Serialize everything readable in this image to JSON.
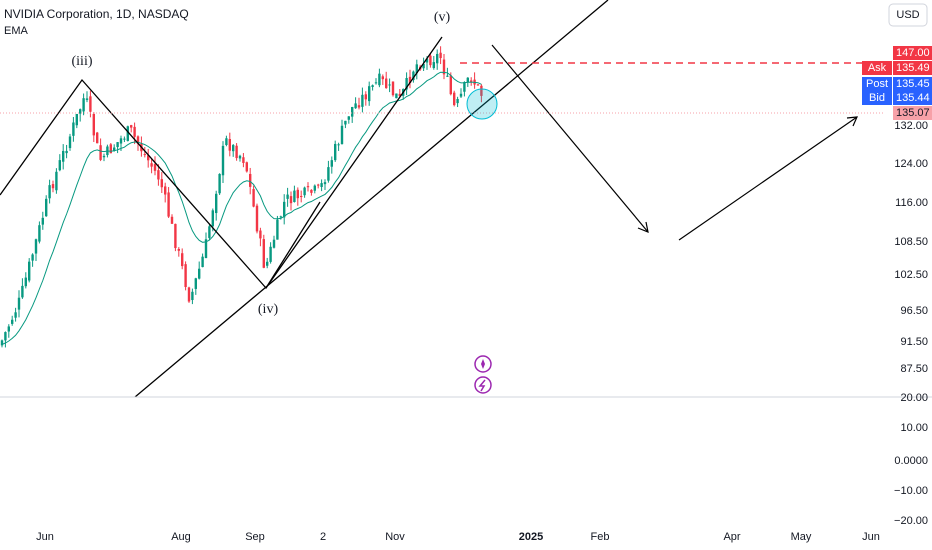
{
  "header": {
    "title": "NVIDIA Corporation, 1D, NASDAQ",
    "indicator": "EMA",
    "currency": "USD"
  },
  "price_axis": {
    "ticks": [
      "132.00",
      "124.00",
      "116.00",
      "108.50",
      "102.50",
      "96.50",
      "91.50",
      "87.50"
    ]
  },
  "indicator_axis": {
    "ticks": [
      "20.00",
      "10.00",
      "0.0000",
      "−10.00",
      "−20.00"
    ]
  },
  "time_axis": {
    "labels": [
      "Jun",
      "Aug",
      "Sep",
      "2",
      "Nov",
      "2025",
      "Feb",
      "Apr",
      "May",
      "Jun"
    ]
  },
  "price_tags": [
    {
      "value": "147.00"
    },
    {
      "name": "Ask",
      "value": "135.49"
    },
    {
      "name": "Post",
      "value": "135.45"
    },
    {
      "name": "Bid",
      "value": "135.44"
    },
    {
      "value": "135.07"
    }
  ],
  "annotations": [
    "(iii)",
    "(iv)",
    "(v)"
  ]
}
